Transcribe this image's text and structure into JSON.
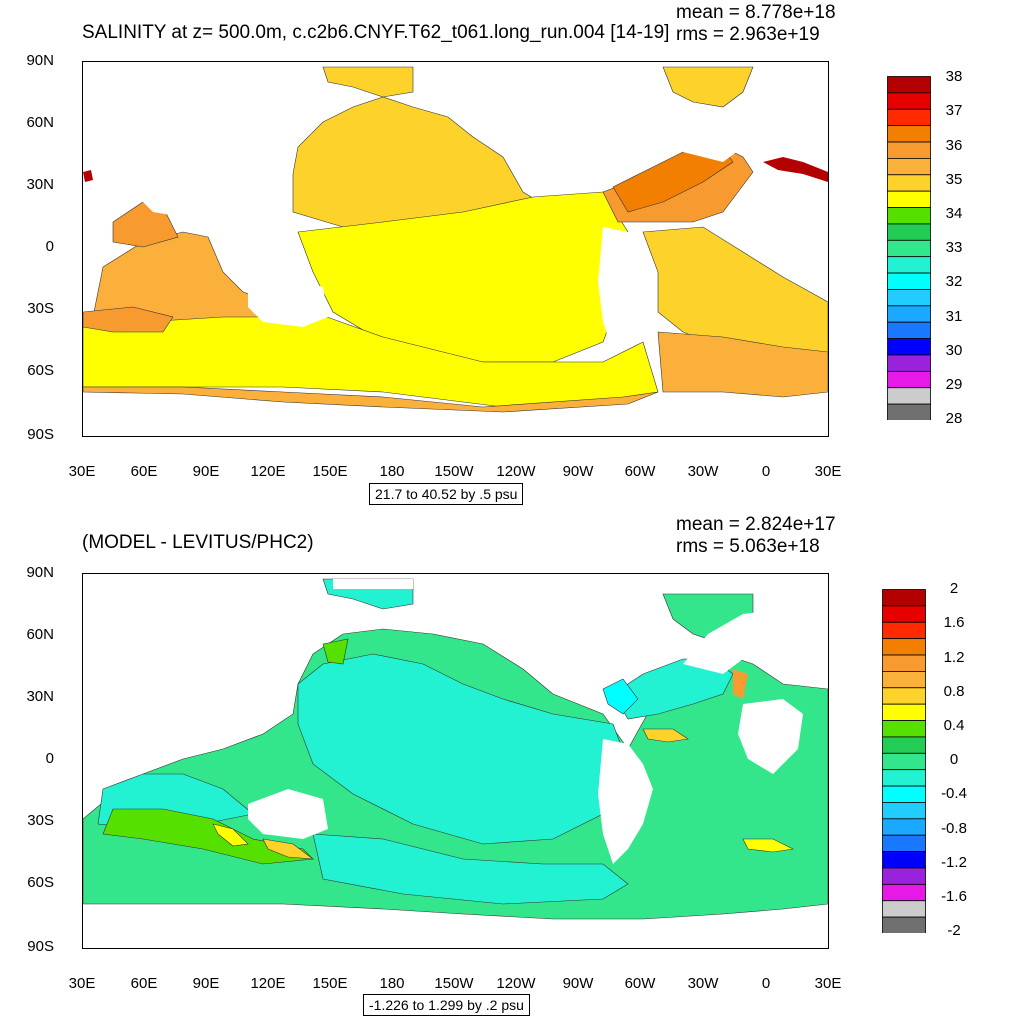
{
  "panels": [
    {
      "title": "SALINITY at z= 500.0m, c.c2b6.CNYF.T62_t061.long_run.004 [14-19]",
      "mean": "mean = 8.778e+18",
      "rms": "rms = 2.963e+19",
      "range_label": "21.7 to 40.52 by .5 psu",
      "y_ticks": [
        "90N",
        "60N",
        "30N",
        "0",
        "30S",
        "60S",
        "90S"
      ],
      "x_ticks": [
        "30E",
        "60E",
        "90E",
        "120E",
        "150E",
        "180",
        "150W",
        "120W",
        "90W",
        "60W",
        "30W",
        "0",
        "30E"
      ],
      "colorbar_labels": [
        "38",
        "37",
        "36",
        "35",
        "34",
        "33",
        "32",
        "31",
        "30",
        "29",
        "28"
      ],
      "colorbar_colors": [
        "#b30000",
        "#e60000",
        "#ff2a00",
        "#f27f00",
        "#f79a30",
        "#fbb03b",
        "#fdd22a",
        "#ffff00",
        "#55e000",
        "#22cc55",
        "#33e68c",
        "#22f2d2",
        "#00ffff",
        "#22ccff",
        "#1aa9ff",
        "#1a77ff",
        "#0000ff",
        "#9922dd",
        "#e619e6",
        "#cccccc",
        "#707070"
      ]
    },
    {
      "title": "(MODEL - LEVITUS/PHC2)",
      "mean": "mean = 2.824e+17",
      "rms": "rms = 5.063e+18",
      "range_label": "-1.226 to 1.299 by .2 psu",
      "y_ticks": [
        "90N",
        "60N",
        "30N",
        "0",
        "30S",
        "60S",
        "90S"
      ],
      "x_ticks": [
        "30E",
        "60E",
        "90E",
        "120E",
        "150E",
        "180",
        "150W",
        "120W",
        "90W",
        "60W",
        "30W",
        "0",
        "30E"
      ],
      "colorbar_labels": [
        "2",
        "1.6",
        "1.2",
        "0.8",
        "0.4",
        "0",
        "-0.4",
        "-0.8",
        "-1.2",
        "-1.6",
        "-2"
      ],
      "colorbar_colors": [
        "#b30000",
        "#e60000",
        "#ff2a00",
        "#f27f00",
        "#f79a30",
        "#fbb03b",
        "#fdd22a",
        "#ffff00",
        "#55e000",
        "#22cc55",
        "#33e68c",
        "#22f2d2",
        "#00ffff",
        "#22ccff",
        "#1aa9ff",
        "#1a77ff",
        "#0000ff",
        "#9922dd",
        "#e619e6",
        "#cccccc",
        "#707070"
      ]
    }
  ]
}
